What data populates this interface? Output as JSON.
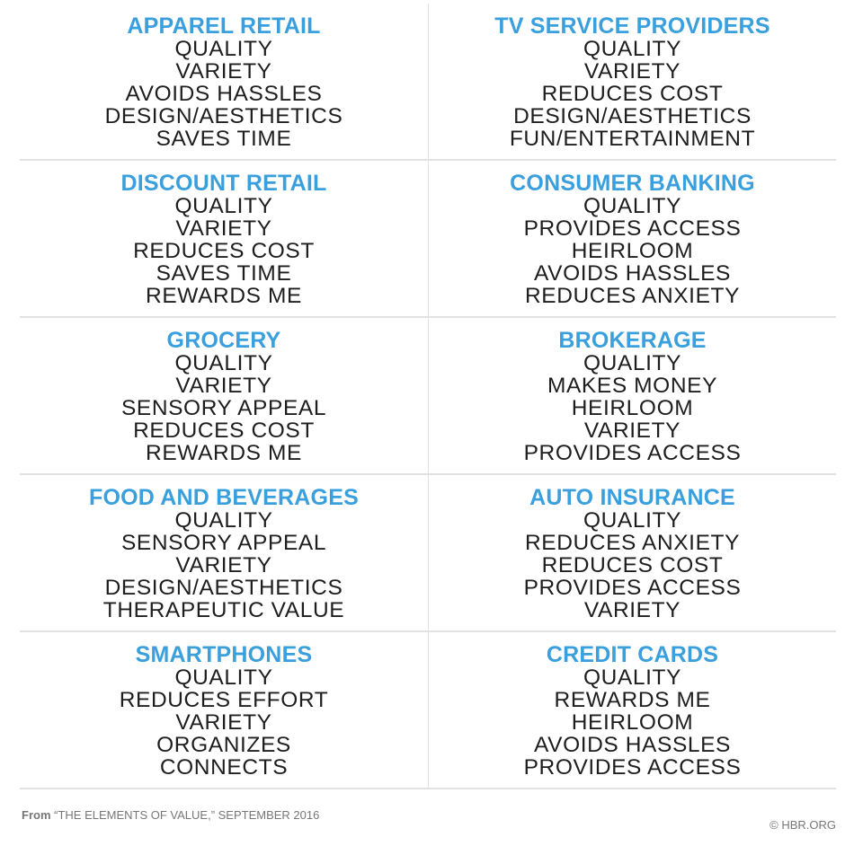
{
  "categories": [
    {
      "title": "APPAREL RETAIL",
      "items": [
        "QUALITY",
        "VARIETY",
        "AVOIDS HASSLES",
        "DESIGN/AESTHETICS",
        "SAVES TIME"
      ]
    },
    {
      "title": "TV SERVICE PROVIDERS",
      "items": [
        "QUALITY",
        "VARIETY",
        "REDUCES COST",
        "DESIGN/AESTHETICS",
        "FUN/ENTERTAINMENT"
      ]
    },
    {
      "title": "DISCOUNT RETAIL",
      "items": [
        "QUALITY",
        "VARIETY",
        "REDUCES COST",
        "SAVES TIME",
        "REWARDS ME"
      ]
    },
    {
      "title": "CONSUMER BANKING",
      "items": [
        "QUALITY",
        "PROVIDES ACCESS",
        "HEIRLOOM",
        "AVOIDS HASSLES",
        "REDUCES ANXIETY"
      ]
    },
    {
      "title": "GROCERY",
      "items": [
        "QUALITY",
        "VARIETY",
        "SENSORY APPEAL",
        "REDUCES COST",
        "REWARDS ME"
      ]
    },
    {
      "title": "BROKERAGE",
      "items": [
        "QUALITY",
        "MAKES MONEY",
        "HEIRLOOM",
        "VARIETY",
        "PROVIDES ACCESS"
      ]
    },
    {
      "title": "FOOD AND BEVERAGES",
      "items": [
        "QUALITY",
        "SENSORY APPEAL",
        "VARIETY",
        "DESIGN/AESTHETICS",
        "THERAPEUTIC VALUE"
      ]
    },
    {
      "title": "AUTO INSURANCE",
      "items": [
        "QUALITY",
        "REDUCES ANXIETY",
        "REDUCES COST",
        "PROVIDES ACCESS",
        "VARIETY"
      ]
    },
    {
      "title": "SMARTPHONES",
      "items": [
        "QUALITY",
        "REDUCES EFFORT",
        "VARIETY",
        "ORGANIZES",
        "CONNECTS"
      ]
    },
    {
      "title": "CREDIT CARDS",
      "items": [
        "QUALITY",
        "REWARDS ME",
        "HEIRLOOM",
        "AVOIDS HASSLES",
        "PROVIDES ACCESS"
      ]
    }
  ],
  "footer": {
    "from_label": "From",
    "source_text": "“THE ELEMENTS OF VALUE,” SEPTEMBER 2016",
    "copyright": "© HBR.ORG"
  },
  "colors": {
    "title": "#3aa0dd",
    "item": "#1e1e1e",
    "divider": "#e2e2e2",
    "footer": "#777777"
  }
}
